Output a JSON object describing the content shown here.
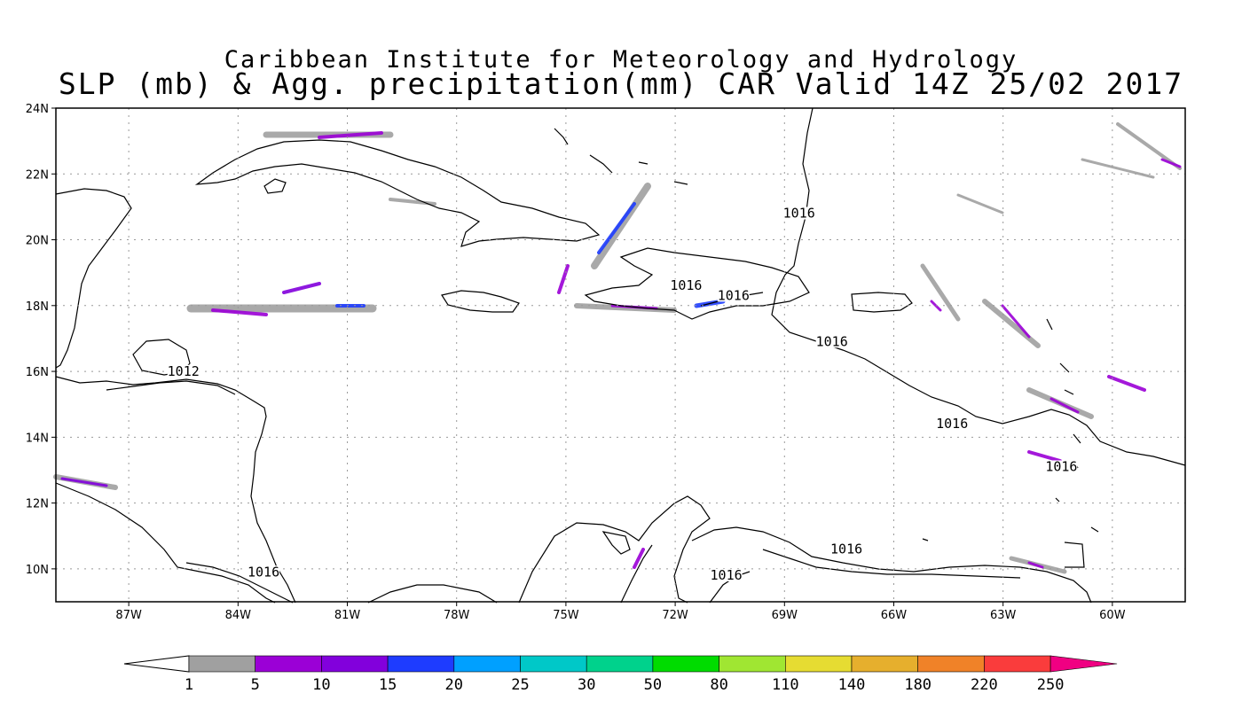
{
  "title": {
    "line1": "Caribbean Institute for Meteorology and Hydrology",
    "line2": "SLP (mb) & Agg. precipitation(mm) CAR Valid 14Z 25/02 2017"
  },
  "map": {
    "lon_range": [
      -89.0,
      -58.0
    ],
    "lat_range": [
      9.0,
      24.0
    ],
    "lat_ticks": [
      "24N",
      "22N",
      "20N",
      "18N",
      "16N",
      "14N",
      "12N",
      "10N"
    ],
    "lat_tick_values": [
      24,
      22,
      20,
      18,
      16,
      14,
      12,
      10
    ],
    "lon_ticks": [
      "87W",
      "84W",
      "81W",
      "78W",
      "75W",
      "72W",
      "69W",
      "66W",
      "63W",
      "60W"
    ],
    "lon_tick_values": [
      -87,
      -84,
      -81,
      -78,
      -75,
      -72,
      -69,
      -66,
      -63,
      -60
    ],
    "grid": "dotted",
    "isobar_labels": [
      {
        "text": "1016",
        "lon": -68.6,
        "lat": 20.7
      },
      {
        "text": "1016",
        "lon": -71.7,
        "lat": 18.5
      },
      {
        "text": "1016",
        "lon": -70.4,
        "lat": 18.2
      },
      {
        "text": "1016",
        "lon": -67.7,
        "lat": 16.8
      },
      {
        "text": "1012",
        "lon": -85.5,
        "lat": 15.9
      },
      {
        "text": "1016",
        "lon": -64.4,
        "lat": 14.3
      },
      {
        "text": "1016",
        "lon": -61.4,
        "lat": 13.0
      },
      {
        "text": "1016",
        "lon": -67.3,
        "lat": 10.5
      },
      {
        "text": "1016",
        "lon": -70.6,
        "lat": 9.7
      },
      {
        "text": "1016",
        "lon": -83.3,
        "lat": 9.8
      }
    ]
  },
  "colorbar": {
    "labels": [
      "1",
      "5",
      "10",
      "15",
      "20",
      "25",
      "30",
      "50",
      "80",
      "110",
      "140",
      "180",
      "220",
      "250"
    ],
    "colors": [
      "#a0a0a0",
      "#9b00d6",
      "#8200dc",
      "#1e3cff",
      "#00a0ff",
      "#00c8c8",
      "#00d28c",
      "#00dc00",
      "#a0e632",
      "#e6dc32",
      "#e6af2d",
      "#f08228",
      "#fa3c3c",
      "#f00082"
    ]
  }
}
